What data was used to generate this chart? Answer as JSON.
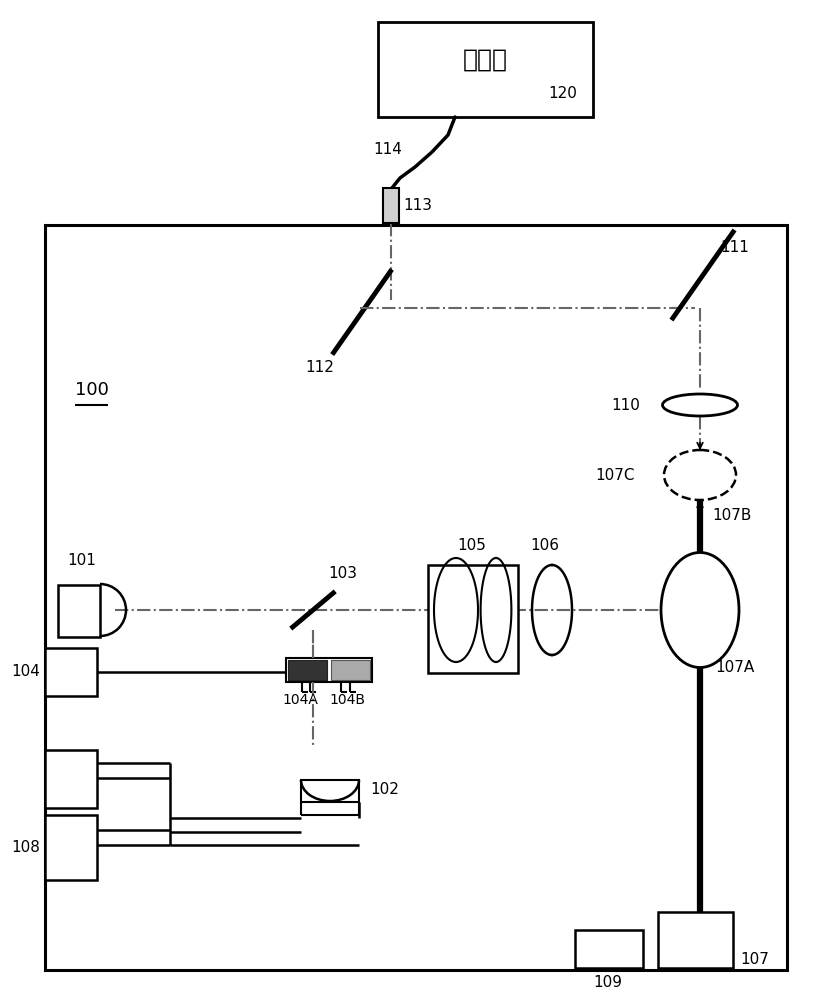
{
  "bg_color": "#ffffff",
  "spectrometer_label": "光谱仪",
  "label_120": "120",
  "label_114": "114",
  "label_113": "113",
  "label_112": "112",
  "label_111": "111",
  "label_110": "110",
  "label_107C": "107C",
  "label_107B": "107B",
  "label_107A": "107A",
  "label_107": "107",
  "label_106": "106",
  "label_105": "105",
  "label_104": "104",
  "label_104A": "104A",
  "label_104B": "104B",
  "label_103": "103",
  "label_102": "102",
  "label_101": "101",
  "label_100": "100",
  "label_109": "109",
  "label_108": "108"
}
